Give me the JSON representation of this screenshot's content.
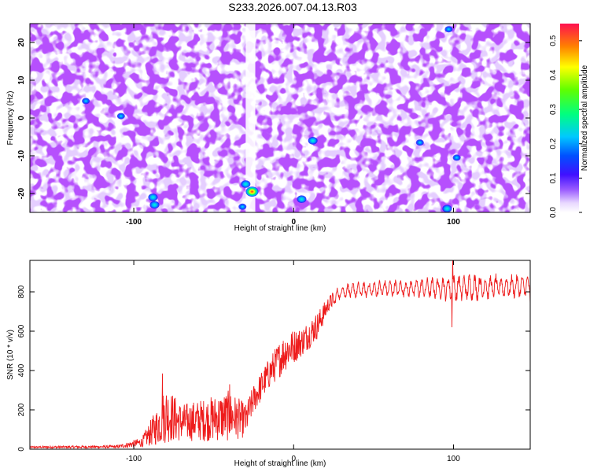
{
  "title": "S233.2026.007.04.13.R03",
  "chart_data": [
    {
      "type": "heatmap",
      "xlabel": "Height of straight line (km)",
      "ylabel": "Frequency (Hz)",
      "xlim": [
        -165,
        148
      ],
      "ylim": [
        -25,
        25
      ],
      "xticks": [
        -100,
        0,
        100
      ],
      "yticks": [
        -20,
        -10,
        0,
        10,
        20
      ],
      "colorbar": {
        "label": "Normalized spectral amplitude",
        "range": [
          0,
          0.55
        ],
        "ticks": [
          "0.0",
          "0.1",
          "0.2",
          "0.3",
          "0.4",
          "0.5"
        ]
      },
      "hotspots": [
        {
          "x": -26,
          "y": -19.5,
          "value": 0.55
        },
        {
          "x": -30,
          "y": -17.5,
          "value": 0.28
        },
        {
          "x": -88,
          "y": -21,
          "value": 0.2
        },
        {
          "x": -87,
          "y": -23,
          "value": 0.18
        },
        {
          "x": -32,
          "y": -23.5,
          "value": 0.16
        },
        {
          "x": 5,
          "y": -21.5,
          "value": 0.2
        },
        {
          "x": 12,
          "y": -6,
          "value": 0.18
        },
        {
          "x": -130,
          "y": 4.5,
          "value": 0.16
        },
        {
          "x": -108,
          "y": 0.5,
          "value": 0.15
        },
        {
          "x": 96,
          "y": -24,
          "value": 0.2
        },
        {
          "x": 97,
          "y": 23.5,
          "value": 0.17
        },
        {
          "x": 79,
          "y": -6.5,
          "value": 0.14
        },
        {
          "x": 102,
          "y": -10.5,
          "value": 0.13
        }
      ],
      "background_amplitude_range": [
        0,
        0.12
      ],
      "low_amplitude_band_x": [
        -30,
        -24
      ]
    },
    {
      "type": "line",
      "xlabel": "Height of straight line (km)",
      "ylabel": "SNR (10 * v/v)",
      "xlim": [
        -165,
        148
      ],
      "ylim": [
        0,
        960
      ],
      "xticks": [
        -100,
        0,
        100
      ],
      "yticks": [
        0,
        200,
        400,
        600,
        800
      ],
      "series": [
        {
          "color": "#ee1c1c",
          "envelope": [
            {
              "x": -165,
              "low": 5,
              "high": 15
            },
            {
              "x": -110,
              "low": 5,
              "high": 20
            },
            {
              "x": -95,
              "low": 10,
              "high": 60
            },
            {
              "x": -85,
              "low": 20,
              "high": 220
            },
            {
              "x": -80,
              "low": 30,
              "high": 330
            },
            {
              "x": -70,
              "low": 40,
              "high": 230
            },
            {
              "x": -55,
              "low": 40,
              "high": 260
            },
            {
              "x": -40,
              "low": 40,
              "high": 300
            },
            {
              "x": -30,
              "low": 60,
              "high": 230
            },
            {
              "x": -25,
              "low": 180,
              "high": 330
            },
            {
              "x": -15,
              "low": 310,
              "high": 470
            },
            {
              "x": -5,
              "low": 400,
              "high": 600
            },
            {
              "x": 5,
              "low": 470,
              "high": 620
            },
            {
              "x": 15,
              "low": 560,
              "high": 700
            },
            {
              "x": 22,
              "low": 700,
              "high": 780
            },
            {
              "x": 30,
              "low": 760,
              "high": 845
            },
            {
              "x": 60,
              "low": 770,
              "high": 865
            },
            {
              "x": 90,
              "low": 760,
              "high": 880
            },
            {
              "x": 100,
              "low": 740,
              "high": 900
            },
            {
              "x": 148,
              "low": 770,
              "high": 890
            }
          ],
          "spikes": [
            {
              "x": -82,
              "y": 385
            },
            {
              "x": -40,
              "y": 330
            },
            {
              "x": 99,
              "y": 620
            },
            {
              "x": 99.5,
              "y": 990
            },
            {
              "x": 148,
              "y": 740
            }
          ]
        }
      ]
    }
  ]
}
